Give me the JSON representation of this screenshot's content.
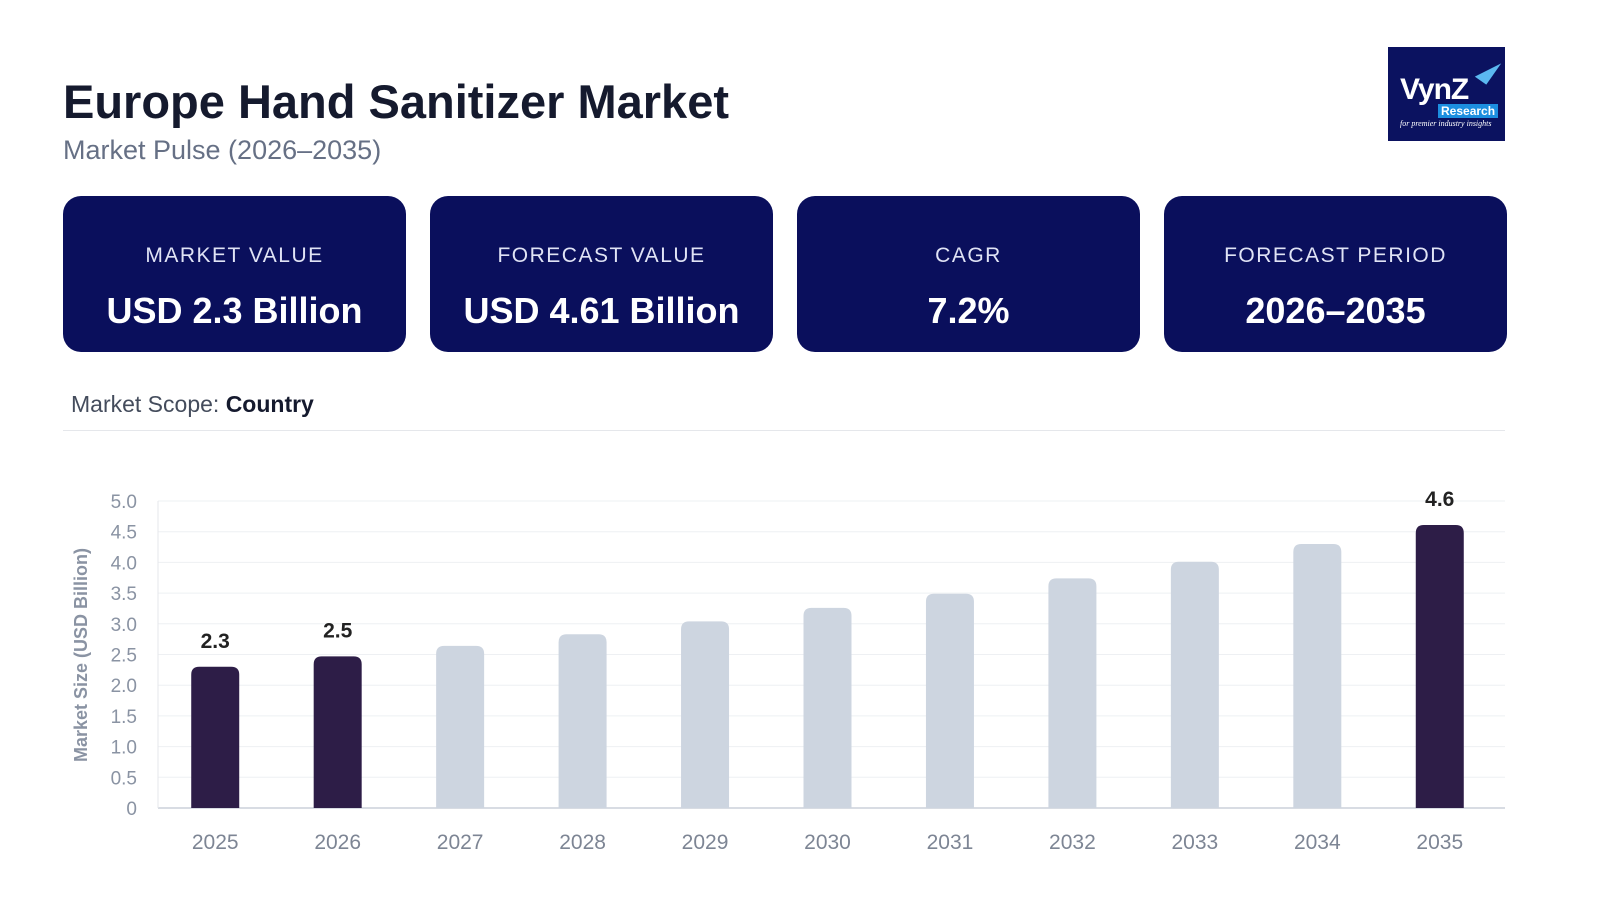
{
  "header": {
    "title": "Europe Hand Sanitizer Market",
    "subtitle": "Market Pulse (2026–2035)"
  },
  "logo": {
    "brand": "VynZ",
    "sub": "Research",
    "tagline": "for premier industry insights"
  },
  "cards": [
    {
      "label": "MARKET VALUE",
      "value": "USD 2.3 Billion"
    },
    {
      "label": "FORECAST VALUE",
      "value": "USD 4.61 Billion"
    },
    {
      "label": "CAGR",
      "value": "7.2%"
    },
    {
      "label": "FORECAST PERIOD",
      "value": "2026–2035"
    }
  ],
  "scope": {
    "label": "Market Scope:",
    "value": "Country"
  },
  "colors": {
    "highlight": "#2d1d47",
    "muted": "#cdd5e0",
    "card": "#0a0f5c"
  },
  "chart_data": {
    "type": "bar",
    "ylabel": "Market Size (USD Billion)",
    "xlabel": "",
    "ylim": [
      0,
      5.0
    ],
    "yticks": [
      "0",
      "0.5",
      "1.0",
      "1.5",
      "2.0",
      "2.5",
      "3.0",
      "3.5",
      "4.0",
      "4.5",
      "5.0"
    ],
    "grid": true,
    "categories": [
      "2025",
      "2026",
      "2027",
      "2028",
      "2029",
      "2030",
      "2031",
      "2032",
      "2033",
      "2034",
      "2035"
    ],
    "values": [
      2.3,
      2.47,
      2.64,
      2.83,
      3.04,
      3.26,
      3.49,
      3.74,
      4.01,
      4.3,
      4.61
    ],
    "highlighted": [
      true,
      true,
      false,
      false,
      false,
      false,
      false,
      false,
      false,
      false,
      true
    ],
    "data_labels": [
      "2.3",
      "2.5",
      "",
      "",
      "",
      "",
      "",
      "",
      "",
      "",
      "4.6"
    ]
  }
}
